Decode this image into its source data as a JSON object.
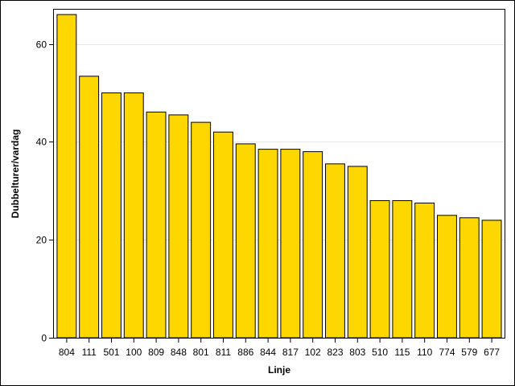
{
  "chart_data": {
    "type": "bar",
    "title": "",
    "xlabel": "Linje",
    "ylabel": "Dubbelturer/vardag",
    "categories": [
      "804",
      "111",
      "501",
      "100",
      "809",
      "848",
      "801",
      "811",
      "886",
      "844",
      "817",
      "102",
      "823",
      "803",
      "510",
      "115",
      "110",
      "774",
      "579",
      "677"
    ],
    "values": [
      66,
      53.4,
      50,
      50,
      46.1,
      45.5,
      44,
      42,
      39.6,
      38.5,
      38.5,
      38,
      35.5,
      35,
      28,
      28,
      27.5,
      25,
      24.5,
      24
    ],
    "ylim": [
      0,
      67
    ],
    "yticks": [
      0,
      20,
      40,
      60
    ],
    "grid": true,
    "legend": "none",
    "colors": {
      "bar_fill": "#FFD700",
      "bar_stroke": "#000000",
      "gridline": "#E8E8E8"
    }
  }
}
